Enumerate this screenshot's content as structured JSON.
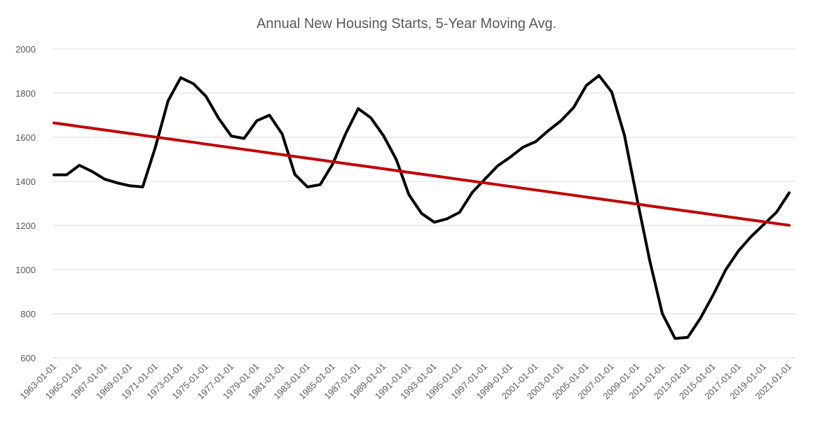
{
  "chart_data": {
    "type": "line",
    "title": "Annual New Housing Starts, 5-Year Moving Avg.",
    "xlabel": "",
    "ylabel": "",
    "ylim": [
      600,
      2000
    ],
    "y_ticks": [
      600,
      800,
      1000,
      1200,
      1400,
      1600,
      1800,
      2000
    ],
    "grid": "horizontal",
    "legend": "none",
    "x_tick_labels": [
      "1963-01-01",
      "1965-01-01",
      "1967-01-01",
      "1969-01-01",
      "1971-01-01",
      "1973-01-01",
      "1975-01-01",
      "1977-01-01",
      "1979-01-01",
      "1981-01-01",
      "1983-01-01",
      "1985-01-01",
      "1987-01-01",
      "1989-01-01",
      "1991-01-01",
      "1993-01-01",
      "1995-01-01",
      "1997-01-01",
      "1999-01-01",
      "2001-01-01",
      "2003-01-01",
      "2005-01-01",
      "2007-01-01",
      "2009-01-01",
      "2011-01-01",
      "2013-01-01",
      "2015-01-01",
      "2017-01-01",
      "2019-01-01",
      "2021-01-01"
    ],
    "x": [
      "1963-01-01",
      "1964-01-01",
      "1965-01-01",
      "1966-01-01",
      "1967-01-01",
      "1968-01-01",
      "1969-01-01",
      "1970-01-01",
      "1971-01-01",
      "1972-01-01",
      "1973-01-01",
      "1974-01-01",
      "1975-01-01",
      "1976-01-01",
      "1977-01-01",
      "1978-01-01",
      "1979-01-01",
      "1980-01-01",
      "1981-01-01",
      "1982-01-01",
      "1983-01-01",
      "1984-01-01",
      "1985-01-01",
      "1986-01-01",
      "1987-01-01",
      "1988-01-01",
      "1989-01-01",
      "1990-01-01",
      "1991-01-01",
      "1992-01-01",
      "1993-01-01",
      "1994-01-01",
      "1995-01-01",
      "1996-01-01",
      "1997-01-01",
      "1998-01-01",
      "1999-01-01",
      "2000-01-01",
      "2001-01-01",
      "2002-01-01",
      "2003-01-01",
      "2004-01-01",
      "2005-01-01",
      "2006-01-01",
      "2007-01-01",
      "2008-01-01",
      "2009-01-01",
      "2010-01-01",
      "2011-01-01",
      "2012-01-01",
      "2013-01-01",
      "2014-01-01",
      "2015-01-01",
      "2016-01-01",
      "2017-01-01",
      "2018-01-01",
      "2019-01-01",
      "2020-01-01",
      "2021-01-01"
    ],
    "series": [
      {
        "color": "#000000",
        "values": [
          1430,
          1430,
          1473,
          1445,
          1410,
          1393,
          1380,
          1375,
          1555,
          1765,
          1870,
          1843,
          1785,
          1685,
          1605,
          1595,
          1675,
          1700,
          1615,
          1432,
          1375,
          1385,
          1480,
          1615,
          1730,
          1688,
          1607,
          1500,
          1340,
          1255,
          1215,
          1230,
          1260,
          1350,
          1410,
          1470,
          1510,
          1555,
          1580,
          1630,
          1675,
          1735,
          1835,
          1880,
          1805,
          1610,
          1320,
          1040,
          800,
          688,
          693,
          780,
          885,
          1000,
          1085,
          1150,
          1205,
          1260,
          1348
        ]
      },
      {
        "color": "#c00000",
        "values": [
          1665,
          1657,
          1649,
          1641,
          1633,
          1625,
          1617,
          1609,
          1601,
          1593,
          1585,
          1577,
          1569,
          1561,
          1553,
          1545,
          1537,
          1529,
          1521,
          1513,
          1505,
          1497,
          1489,
          1481,
          1473,
          1465,
          1457,
          1449,
          1441,
          1433,
          1425,
          1417,
          1409,
          1401,
          1393,
          1385,
          1377,
          1369,
          1361,
          1353,
          1345,
          1337,
          1329,
          1321,
          1313,
          1305,
          1297,
          1289,
          1281,
          1273,
          1265,
          1257,
          1249,
          1241,
          1233,
          1225,
          1217,
          1209,
          1201
        ]
      }
    ]
  }
}
